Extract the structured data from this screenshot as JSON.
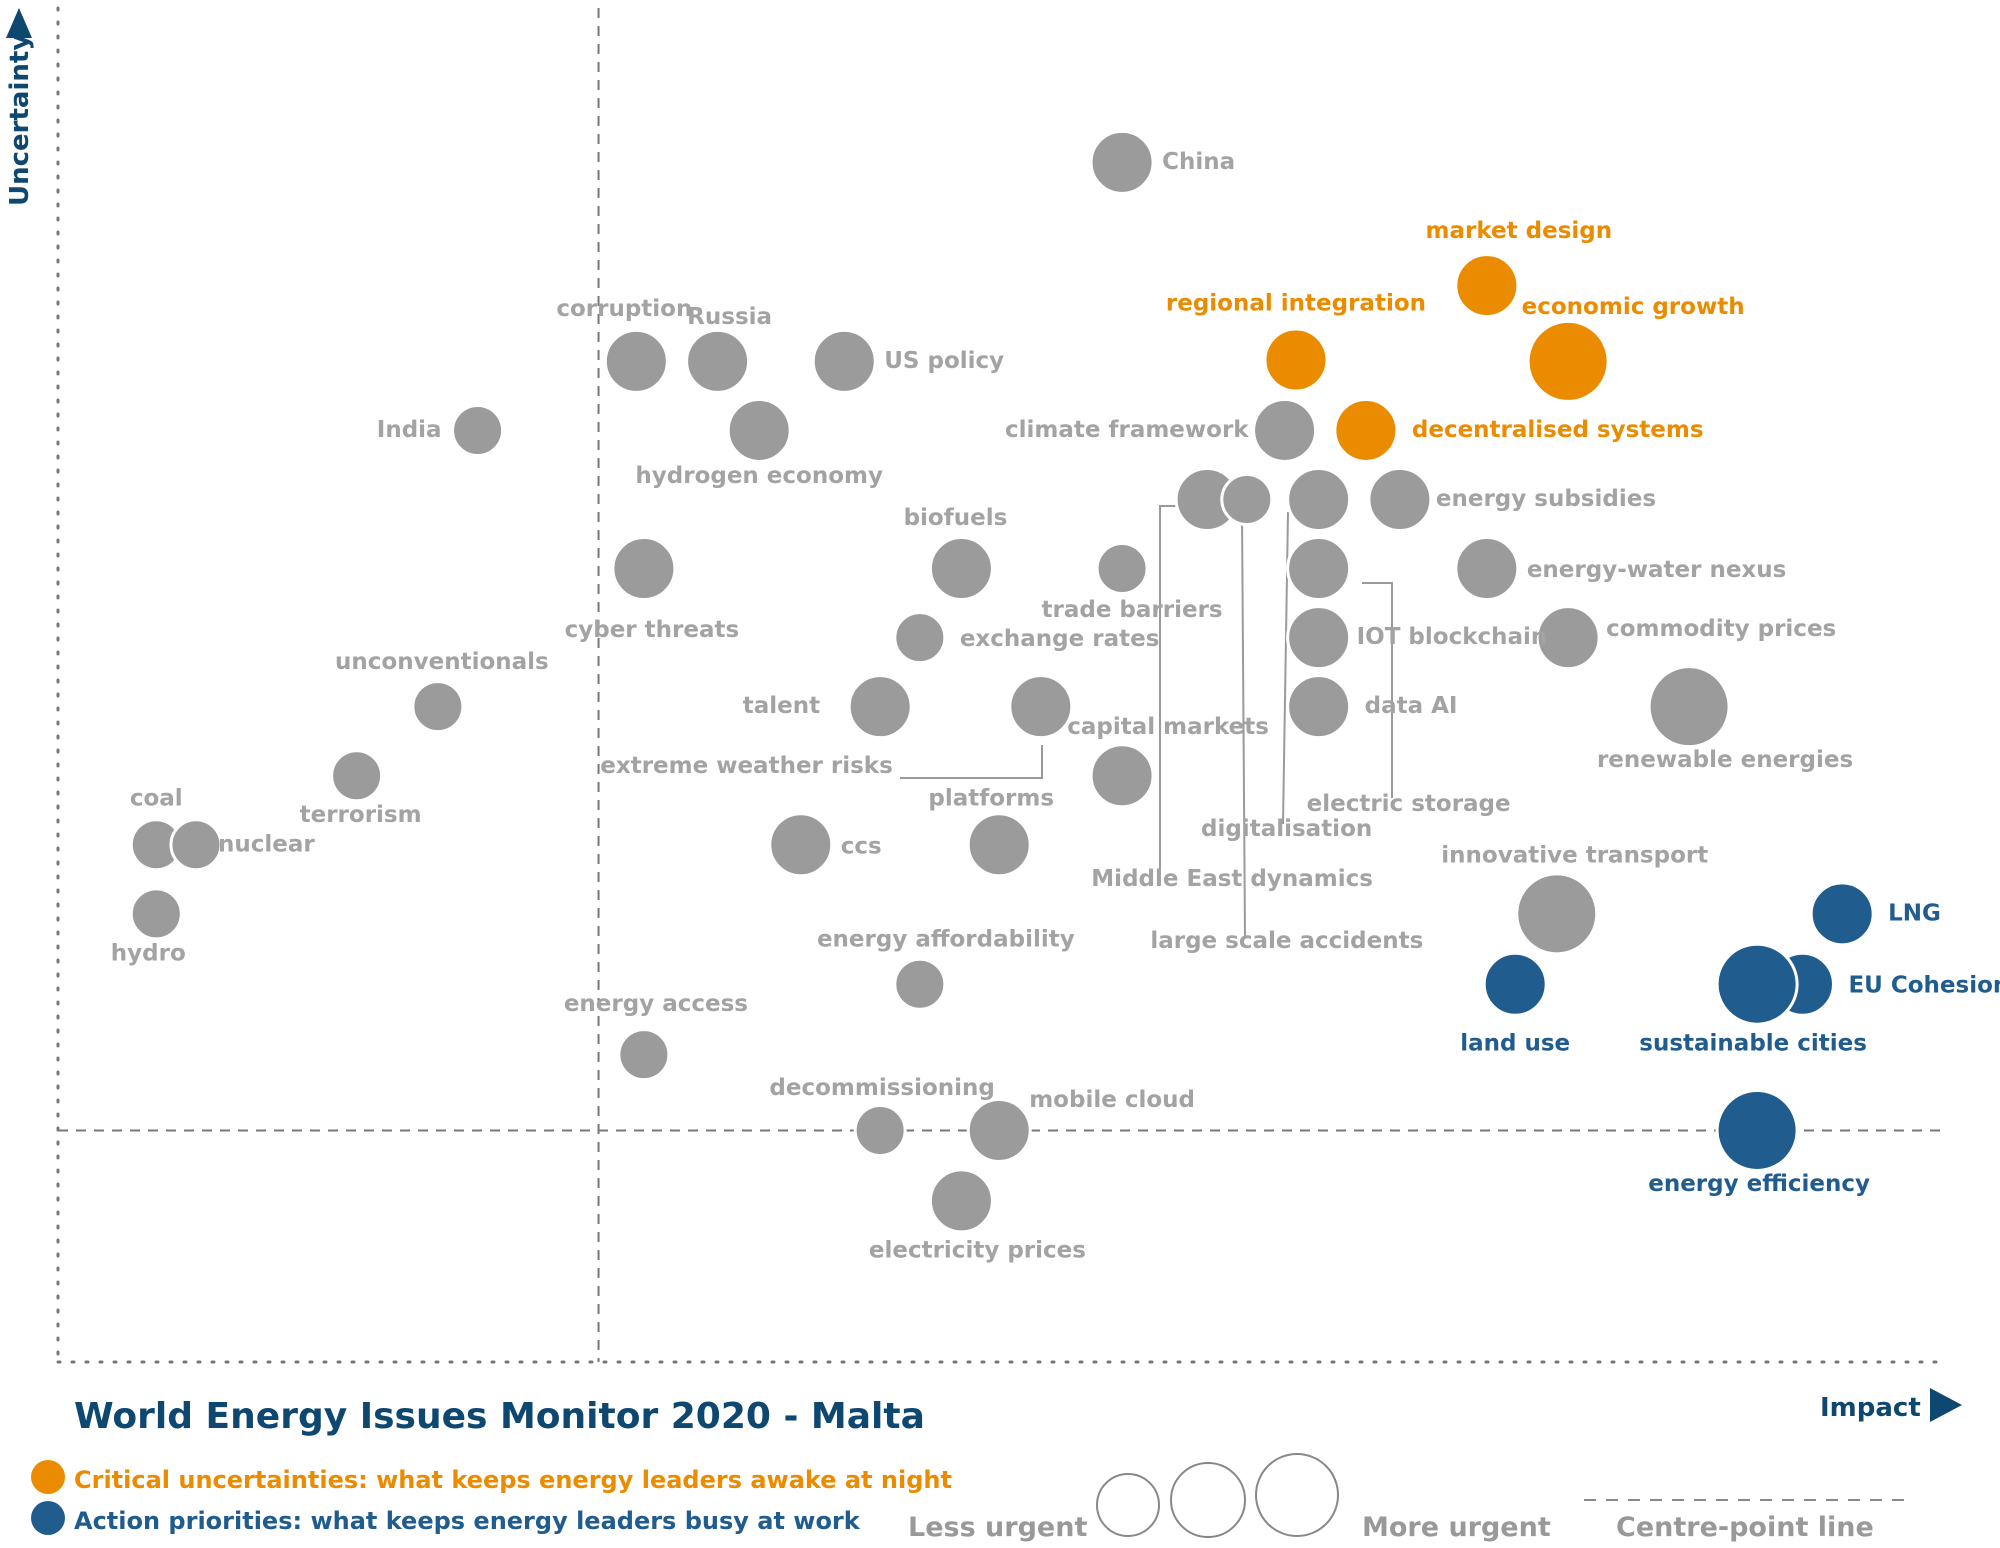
{
  "title": "World Energy Issues Monitor 2020 - Malta",
  "colors": {
    "neutral": "#9b9b9b",
    "neutral_text": "#a3a3a3",
    "critical": "#ea8b00",
    "priority": "#215c8f",
    "axis": "#1f4f76"
  },
  "legend": {
    "critical_label": "Critical uncertainties: what keeps energy leaders awake at night",
    "priority_label": "Action priorities: what keeps energy leaders busy at work",
    "less_urgent": "Less urgent",
    "more_urgent": "More urgent",
    "centre_line": "Centre-point  line"
  },
  "chart_data": {
    "type": "scatter",
    "title": "World Energy Issues Monitor 2020 - Malta",
    "xlabel": "Impact",
    "ylabel": "Uncertainty",
    "xlim": [
      0,
      100
    ],
    "ylim": [
      0,
      100
    ],
    "centre_point": {
      "x": 28.6,
      "y": 17.1
    },
    "categories": [
      "neutral",
      "critical",
      "priority"
    ],
    "points": [
      {
        "label": "China",
        "x": 56.3,
        "y": 88.6,
        "size": 2,
        "category": "neutral"
      },
      {
        "label": "market design",
        "x": 75.6,
        "y": 79.5,
        "size": 2,
        "category": "critical"
      },
      {
        "label": "regional integration",
        "x": 65.5,
        "y": 74.0,
        "size": 2,
        "category": "critical"
      },
      {
        "label": "economic growth",
        "x": 79.9,
        "y": 73.9,
        "size": 3,
        "category": "critical"
      },
      {
        "label": "decentralised systems",
        "x": 69.2,
        "y": 68.8,
        "size": 2,
        "category": "critical"
      },
      {
        "label": "corruption",
        "x": 30.6,
        "y": 73.9,
        "size": 2,
        "category": "neutral"
      },
      {
        "label": "Russia",
        "x": 34.9,
        "y": 73.9,
        "size": 2,
        "category": "neutral"
      },
      {
        "label": "US policy",
        "x": 41.6,
        "y": 73.9,
        "size": 2,
        "category": "neutral"
      },
      {
        "label": "India",
        "x": 22.2,
        "y": 68.8,
        "size": 1,
        "category": "neutral"
      },
      {
        "label": "hydrogen economy",
        "x": 37.1,
        "y": 68.8,
        "size": 2,
        "category": "neutral"
      },
      {
        "label": "climate framework",
        "x": 64.9,
        "y": 68.8,
        "size": 2,
        "category": "neutral"
      },
      {
        "label": "Middle East dynamics",
        "x": 60.8,
        "y": 63.7,
        "size": 2,
        "category": "neutral"
      },
      {
        "label": "large scale accidents",
        "x": 62.9,
        "y": 63.7,
        "size": 1,
        "category": "neutral"
      },
      {
        "label": "digitalisation",
        "x": 66.7,
        "y": 63.7,
        "size": 2,
        "category": "neutral"
      },
      {
        "label": "energy subsidies",
        "x": 71.0,
        "y": 63.7,
        "size": 2,
        "category": "neutral"
      },
      {
        "label": "biofuels",
        "x": 47.8,
        "y": 58.6,
        "size": 2,
        "category": "neutral"
      },
      {
        "label": "cyber threats",
        "x": 31.0,
        "y": 58.6,
        "size": 2,
        "category": "neutral"
      },
      {
        "label": "trade barriers",
        "x": 56.3,
        "y": 58.6,
        "size": 1,
        "category": "neutral"
      },
      {
        "label": "electric storage",
        "x": 66.7,
        "y": 58.6,
        "size": 2,
        "category": "neutral"
      },
      {
        "label": "energy-water nexus",
        "x": 75.6,
        "y": 58.6,
        "size": 2,
        "category": "neutral"
      },
      {
        "label": "exchange rates",
        "x": 45.6,
        "y": 53.5,
        "size": 1,
        "category": "neutral"
      },
      {
        "label": "IOT blockchain",
        "x": 66.7,
        "y": 53.5,
        "size": 2,
        "category": "neutral"
      },
      {
        "label": "commodity prices",
        "x": 79.9,
        "y": 53.5,
        "size": 2,
        "category": "neutral"
      },
      {
        "label": "talent",
        "x": 43.5,
        "y": 48.4,
        "size": 2,
        "category": "neutral"
      },
      {
        "label": "extreme weather risks",
        "x": 52.0,
        "y": 48.4,
        "size": 2,
        "category": "neutral"
      },
      {
        "label": "unconventionals",
        "x": 20.1,
        "y": 48.4,
        "size": 1,
        "category": "neutral"
      },
      {
        "label": "data AI",
        "x": 66.7,
        "y": 48.4,
        "size": 2,
        "category": "neutral"
      },
      {
        "label": "renewable energies",
        "x": 86.3,
        "y": 48.4,
        "size": 3,
        "category": "neutral"
      },
      {
        "label": "capital markets",
        "x": 56.3,
        "y": 43.3,
        "size": 2,
        "category": "neutral"
      },
      {
        "label": "terrorism",
        "x": 15.8,
        "y": 43.3,
        "size": 1,
        "category": "neutral"
      },
      {
        "label": "coal",
        "x": 5.2,
        "y": 38.2,
        "size": 1,
        "category": "neutral"
      },
      {
        "label": "nuclear",
        "x": 7.3,
        "y": 38.2,
        "size": 1,
        "category": "neutral"
      },
      {
        "label": "ccs",
        "x": 39.3,
        "y": 38.2,
        "size": 2,
        "category": "neutral"
      },
      {
        "label": "platforms",
        "x": 49.8,
        "y": 38.2,
        "size": 2,
        "category": "neutral"
      },
      {
        "label": "hydro",
        "x": 5.2,
        "y": 33.1,
        "size": 1,
        "category": "neutral"
      },
      {
        "label": "innovative transport",
        "x": 79.3,
        "y": 33.1,
        "size": 3,
        "category": "neutral"
      },
      {
        "label": "LNG",
        "x": 94.4,
        "y": 33.1,
        "size": 2,
        "category": "priority"
      },
      {
        "label": "land use",
        "x": 77.1,
        "y": 27.9,
        "size": 2,
        "category": "priority"
      },
      {
        "label": "EU Cohesion",
        "x": 92.3,
        "y": 27.9,
        "size": 2,
        "category": "priority"
      },
      {
        "label": "sustainable cities",
        "x": 89.9,
        "y": 27.9,
        "size": 3,
        "category": "priority"
      },
      {
        "label": "energy affordability",
        "x": 45.6,
        "y": 27.9,
        "size": 1,
        "category": "neutral"
      },
      {
        "label": "energy access",
        "x": 31.0,
        "y": 22.7,
        "size": 1,
        "category": "neutral"
      },
      {
        "label": "decommissioning",
        "x": 43.5,
        "y": 17.1,
        "size": 1,
        "category": "neutral"
      },
      {
        "label": "mobile cloud",
        "x": 49.8,
        "y": 17.1,
        "size": 2,
        "category": "neutral"
      },
      {
        "label": "energy efficiency",
        "x": 89.9,
        "y": 17.1,
        "size": 3,
        "category": "priority"
      },
      {
        "label": "electricity prices",
        "x": 47.8,
        "y": 11.9,
        "size": 2,
        "category": "neutral"
      }
    ]
  }
}
